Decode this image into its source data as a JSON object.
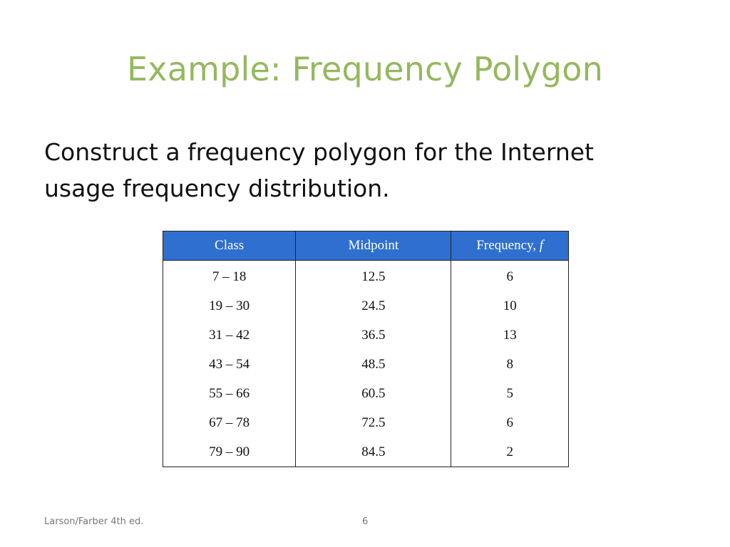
{
  "slide": {
    "title": "Example: Frequency Polygon",
    "body_line1": "Construct a frequency polygon for the Internet",
    "body_line2": "usage frequency distribution."
  },
  "table": {
    "headers": {
      "class": "Class",
      "midpoint": "Midpoint",
      "frequency": "Frequency, ",
      "frequency_symbol": "f"
    },
    "rows": [
      {
        "class": "7 – 18",
        "midpoint": "12.5",
        "frequency": "6"
      },
      {
        "class": "19 – 30",
        "midpoint": "24.5",
        "frequency": "10"
      },
      {
        "class": "31 – 42",
        "midpoint": "36.5",
        "frequency": "13"
      },
      {
        "class": "43 – 54",
        "midpoint": "48.5",
        "frequency": "8"
      },
      {
        "class": "55 – 66",
        "midpoint": "60.5",
        "frequency": "5"
      },
      {
        "class": "67 – 78",
        "midpoint": "72.5",
        "frequency": "6"
      },
      {
        "class": "79 – 90",
        "midpoint": "84.5",
        "frequency": "2"
      }
    ]
  },
  "footer": {
    "left": "Larson/Farber 4th ed.",
    "page_number": "6"
  },
  "colors": {
    "title": "#95b85e",
    "table_header_bg": "#2f6fd0"
  }
}
